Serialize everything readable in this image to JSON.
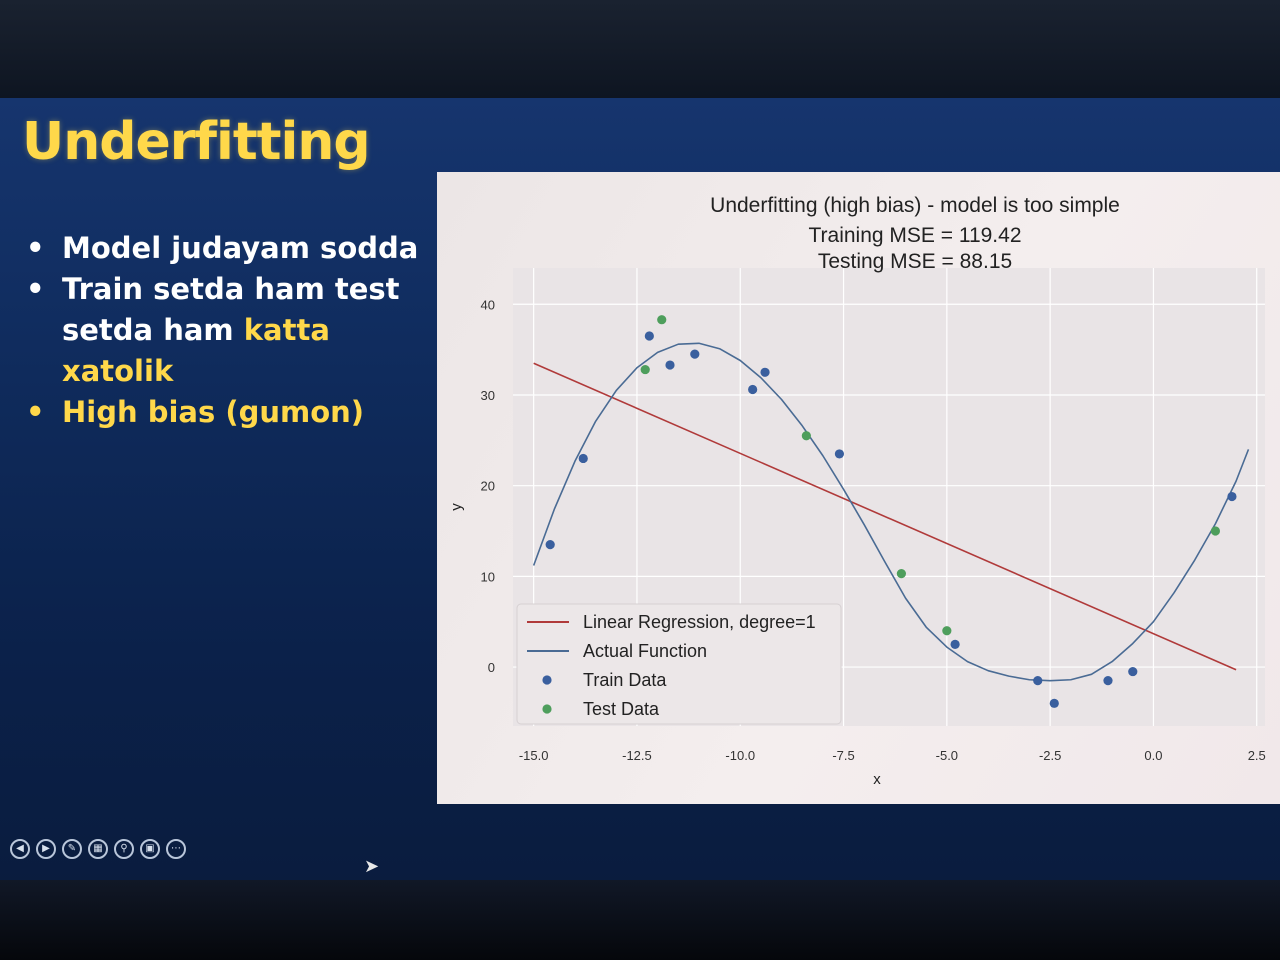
{
  "slide": {
    "title": "Underfitting",
    "bullets": {
      "b1": "Model judayam sodda",
      "b2_part1": "Train setda ham test setda ham ",
      "b2_highlight": "katta xatolik",
      "b3": "High bias (gumon)"
    },
    "colors": {
      "title": "#ffd84a",
      "highlight": "#ffd84a",
      "background": "#0f2b5c"
    }
  },
  "controls": [
    "prev-icon",
    "next-icon",
    "pen-icon",
    "slides-icon",
    "zoom-icon",
    "screen-icon",
    "more-icon"
  ],
  "chart_data": {
    "type": "scatter",
    "title": "Underfitting (high bias) - model is too simple",
    "subtitle_lines": [
      "Training MSE = 119.42",
      "Testing MSE = 88.15"
    ],
    "xlabel": "x",
    "ylabel": "y",
    "xlim": [
      -15.5,
      2.7
    ],
    "ylim": [
      -6.5,
      44
    ],
    "xticks": [
      -15.0,
      -12.5,
      -10.0,
      -7.5,
      -5.0,
      -2.5,
      0.0,
      2.5
    ],
    "xtick_labels": [
      "-15.0",
      "-12.5",
      "-10.0",
      "-7.5",
      "-5.0",
      "-2.5",
      "0.0",
      "2.5"
    ],
    "yticks": [
      0,
      10,
      20,
      30,
      40
    ],
    "ytick_labels": [
      "0",
      "10",
      "20",
      "30",
      "40"
    ],
    "grid": true,
    "legend_position": "lower-left",
    "series": [
      {
        "name": "Linear Regression, degree=1",
        "kind": "line",
        "color": "#b03a3a",
        "x": [
          -15.0,
          2.0
        ],
        "y": [
          33.5,
          -0.3
        ]
      },
      {
        "name": "Actual Function",
        "kind": "line",
        "color": "#4a6b94",
        "x": [
          -15.0,
          -14.5,
          -14.0,
          -13.5,
          -13.0,
          -12.5,
          -12.0,
          -11.5,
          -11.0,
          -10.5,
          -10.0,
          -9.5,
          -9.0,
          -8.5,
          -8.0,
          -7.5,
          -7.0,
          -6.5,
          -6.0,
          -5.5,
          -5.0,
          -4.5,
          -4.0,
          -3.5,
          -3.0,
          -2.5,
          -2.0,
          -1.5,
          -1.0,
          -0.5,
          0.0,
          0.5,
          1.0,
          1.5,
          2.0,
          2.3
        ],
        "y": [
          11.2,
          17.4,
          22.7,
          27.1,
          30.5,
          33.0,
          34.7,
          35.6,
          35.7,
          35.1,
          33.8,
          31.9,
          29.5,
          26.6,
          23.3,
          19.6,
          15.7,
          11.6,
          7.6,
          4.4,
          2.2,
          0.6,
          -0.4,
          -1.0,
          -1.4,
          -1.5,
          -1.4,
          -0.8,
          0.6,
          2.6,
          5.0,
          8.2,
          11.8,
          15.8,
          20.5,
          24.0
        ]
      },
      {
        "name": "Train Data",
        "kind": "scatter",
        "color": "#3a5f9e",
        "x": [
          -14.6,
          -13.8,
          -12.2,
          -11.7,
          -11.1,
          -9.7,
          -9.4,
          -7.6,
          -4.8,
          -2.8,
          -2.4,
          -1.1,
          -0.5,
          1.9
        ],
        "y": [
          13.5,
          23.0,
          36.5,
          33.3,
          34.5,
          30.6,
          32.5,
          23.5,
          2.5,
          -1.5,
          -4.0,
          -1.5,
          -0.5,
          18.8
        ]
      },
      {
        "name": "Test Data",
        "kind": "scatter",
        "color": "#4e9e5c",
        "x": [
          -12.3,
          -11.9,
          -8.4,
          -6.1,
          -5.0,
          1.5
        ],
        "y": [
          32.8,
          38.3,
          25.5,
          10.3,
          4.0,
          15.0
        ]
      }
    ]
  }
}
